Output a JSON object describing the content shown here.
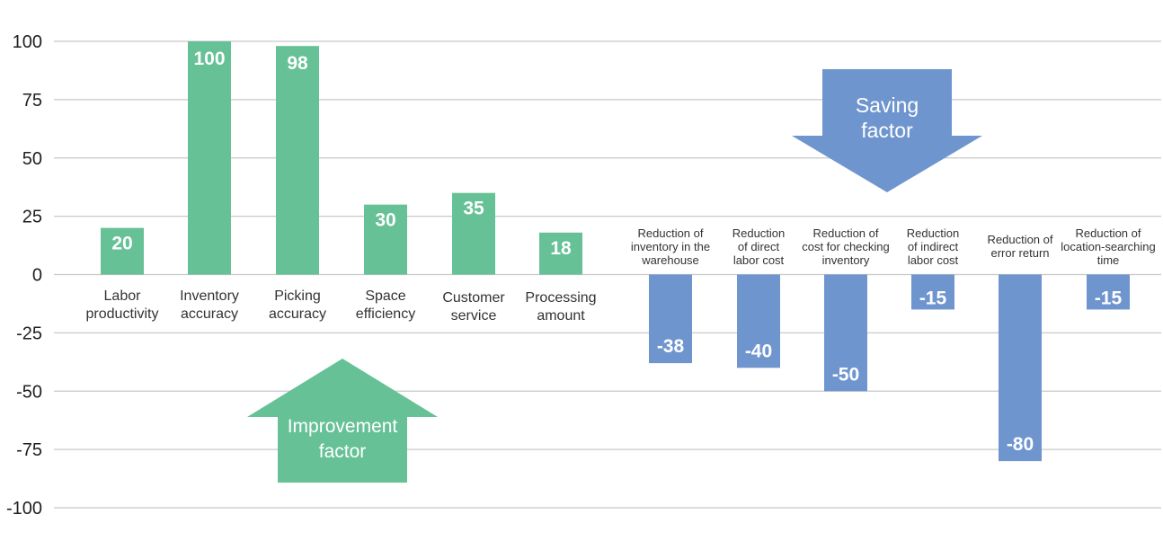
{
  "chart_data": {
    "type": "bar",
    "ylim": [
      -100,
      100
    ],
    "yticks": [
      100,
      75,
      50,
      25,
      0,
      -25,
      -50,
      -75,
      -100
    ],
    "grid": true,
    "colors": {
      "improvement": "#66c196",
      "saving": "#6f95cf",
      "grid": "#c8c8c8"
    },
    "categories": [
      "Labor productivity",
      "Inventory accuracy",
      "Picking accuracy",
      "Space efficiency",
      "Customer service",
      "Processing amount",
      "Reduction of inventory in the warehouse",
      "Reduction of direct labor cost",
      "Reduction of cost for checking inventory",
      "Reduction of indirect labor cost",
      "Reduction of error return",
      "Reduction of location-searching time"
    ],
    "category_lines": [
      [
        "Labor",
        "productivity"
      ],
      [
        "Inventory",
        "accuracy"
      ],
      [
        "Picking",
        "accuracy"
      ],
      [
        "Space",
        "efficiency"
      ],
      [
        "Customer",
        "service"
      ],
      [
        "Processing",
        "amount"
      ],
      [
        "Reduction of",
        "inventory in the",
        "warehouse"
      ],
      [
        "Reduction",
        "of direct",
        "labor cost"
      ],
      [
        "Reduction of",
        "cost for checking",
        "inventory"
      ],
      [
        "Reduction",
        "of indirect",
        "labor cost"
      ],
      [
        "Reduction of",
        "error return"
      ],
      [
        "Reduction of",
        "location-searching",
        "time"
      ]
    ],
    "values": [
      20,
      100,
      98,
      30,
      35,
      18,
      -38,
      -40,
      -50,
      -15,
      -80,
      -15
    ],
    "annotations": {
      "improvement": [
        "Improvement",
        "factor"
      ],
      "saving": [
        "Saving",
        "factor"
      ]
    }
  }
}
